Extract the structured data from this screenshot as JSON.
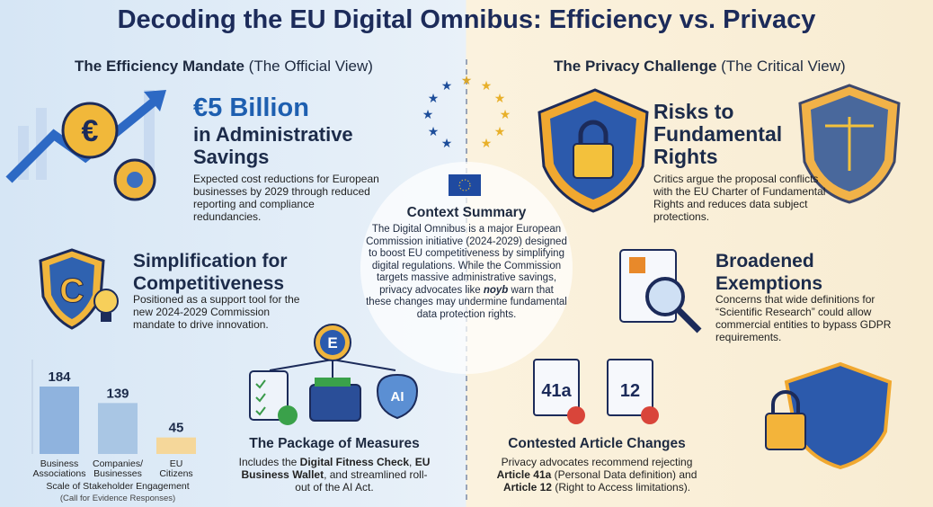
{
  "header": {
    "title": "Decoding the EU Digital Omnibus: Efficiency vs. Privacy"
  },
  "left": {
    "heading": "The Efficiency Mandate",
    "heading_note": "(The Official View)",
    "savings": {
      "amount": "€5 Billion",
      "title": "in Administrative Savings",
      "body": "Expected cost reductions for European businesses by 2029 through reduced reporting and compliance redundancies."
    },
    "simplification": {
      "title": "Simplification for Competitiveness",
      "body": "Positioned as a support tool for the new 2024-2029 Commission mandate to drive innovation."
    },
    "engagement_chart": {
      "categories": [
        "Business Associations",
        "Companies/ Businesses",
        "EU Citizens"
      ],
      "values": [
        184,
        139,
        45
      ],
      "colors": [
        "#8fb3de",
        "#a9c6e4",
        "#f5d79a"
      ],
      "caption": "Scale of Stakeholder Engagement",
      "subcaption": "(Call for Evidence Responses)"
    },
    "package": {
      "icon_labels": [
        "E",
        "AI"
      ],
      "title": "The Package of Measures",
      "body": [
        "Includes the ",
        "Digital Fitness Check",
        ", ",
        "EU Business Wallet",
        ", and streamlined roll-out of the AI Act."
      ]
    }
  },
  "center": {
    "title": "Context Summary",
    "body": [
      "The Digital Omnibus is a major European Commission initiative (2024-2029) designed to boost EU competitiveness by simplifying digital regulations. While the Commission targets massive administrative savings, privacy advocates like ",
      "noyb",
      " warn that these changes may undermine fundamental data protection rights."
    ]
  },
  "right": {
    "heading": "The Privacy Challenge",
    "heading_note": "(The Critical View)",
    "risks": {
      "title": "Risks to Fundamental Rights",
      "body": "Critics argue the proposal conflicts with the EU Charter of Fundamental Rights and reduces data subject protections."
    },
    "exemptions": {
      "title": "Broadened Exemptions",
      "body": "Concerns that wide definitions for “Scientific Research” could allow commercial entities to bypass GDPR requirements."
    },
    "articles": {
      "icon_labels": [
        "41a",
        "12"
      ],
      "title": "Contested Article Changes",
      "body": [
        "Privacy advocates recommend rejecting ",
        "Article 41a",
        " (Personal Data definition) and ",
        "Article 12",
        " (Right to Access limitations)."
      ]
    }
  }
}
